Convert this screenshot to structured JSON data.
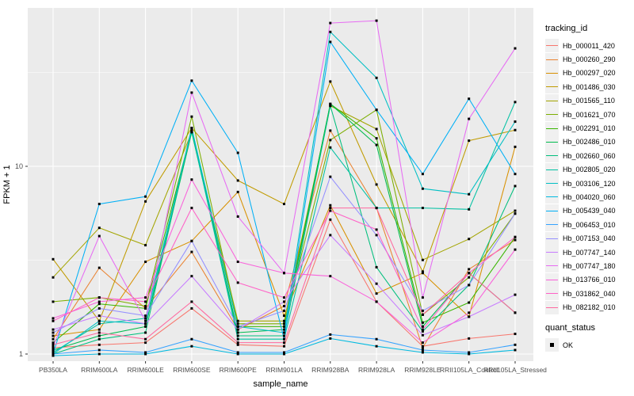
{
  "figure": {
    "background": "#FFFFFF",
    "panel_background": "#EBEBEB",
    "grid_color": "#FFFFFF",
    "axis_text_color": "#4D4D4D",
    "axis_title_color": "#000000",
    "tick_color": "#333333",
    "legend_key_background": "#F0F0F0",
    "point_color": "#000000"
  },
  "legend": {
    "tracking_title": "tracking_id",
    "quant_title": "quant_status",
    "quant_items": [
      "OK"
    ]
  },
  "chart_data": {
    "type": "line",
    "title": "",
    "xlabel": "sample_name",
    "ylabel": "FPKM + 1",
    "yscale": "log10",
    "ylim": [
      0.916,
      69.8
    ],
    "yticks": [
      1,
      10
    ],
    "ytick_labels": [
      "1",
      "10"
    ],
    "yminor": [
      3.162,
      31.623
    ],
    "grid": true,
    "legend_position": "right",
    "point_marker": {
      "shape": "square",
      "color": "#000000",
      "label": "OK"
    },
    "categories": [
      "PB350LA",
      "RRIM600LA",
      "RRIM600LE",
      "RRIM600SE",
      "RRIM600PE",
      "RRIM901LA",
      "RRIM928BA",
      "RRIM928LA",
      "RRIM928LE",
      "RRII105LA_Control",
      "RRII105LA_Stressed"
    ],
    "series": [
      {
        "name": "Hb_000011_420",
        "color": "#F8766D",
        "values": [
          1.08,
          1.12,
          1.15,
          1.75,
          1.12,
          1.1,
          5.2,
          1.9,
          1.1,
          1.21,
          1.28
        ]
      },
      {
        "name": "Hb_000260_290",
        "color": "#EA8331",
        "values": [
          1.2,
          2.88,
          1.75,
          3.5,
          1.35,
          1.8,
          15.5,
          6.0,
          1.08,
          2.83,
          4.05
        ]
      },
      {
        "name": "Hb_000297_020",
        "color": "#D89000",
        "values": [
          1.25,
          1.35,
          3.1,
          4.0,
          7.3,
          1.6,
          6.2,
          2.1,
          2.7,
          1.58,
          12.7
        ]
      },
      {
        "name": "Hb_001486_030",
        "color": "#C09B00",
        "values": [
          3.2,
          1.5,
          6.5,
          16.0,
          8.4,
          6.3,
          28.3,
          8.0,
          2.75,
          13.7,
          15.6
        ]
      },
      {
        "name": "Hb_001565_110",
        "color": "#A3A500",
        "values": [
          2.56,
          4.7,
          3.8,
          15.2,
          1.5,
          1.5,
          21.0,
          15.8,
          3.17,
          4.1,
          5.8
        ]
      },
      {
        "name": "Hb_001621_070",
        "color": "#7CAE00",
        "values": [
          1.9,
          2.0,
          1.8,
          18.4,
          1.45,
          1.45,
          13.8,
          20.0,
          1.62,
          2.56,
          5.6
        ]
      },
      {
        "name": "Hb_002291_010",
        "color": "#39B600",
        "values": [
          1.15,
          1.85,
          1.75,
          15.5,
          1.4,
          1.4,
          21.5,
          14.1,
          1.47,
          1.88,
          4.2
        ]
      },
      {
        "name": "Hb_002486_010",
        "color": "#00BB4E",
        "values": [
          1.05,
          1.25,
          1.4,
          15.2,
          1.3,
          1.35,
          21.5,
          13.0,
          1.4,
          2.7,
          1.66
        ]
      },
      {
        "name": "Hb_002660_060",
        "color": "#00BF7D",
        "values": [
          1.0,
          1.2,
          1.3,
          16.0,
          1.25,
          1.25,
          21.0,
          2.9,
          1.32,
          2.33,
          7.85
        ]
      },
      {
        "name": "Hb_002805_020",
        "color": "#00C1A3",
        "values": [
          1.02,
          1.45,
          1.55,
          15.5,
          1.2,
          1.2,
          12.6,
          6.0,
          6.0,
          5.9,
          22.0
        ]
      },
      {
        "name": "Hb_003106_120",
        "color": "#00BFC4",
        "values": [
          1.0,
          1.5,
          1.45,
          16.0,
          1.4,
          1.3,
          52.0,
          29.6,
          7.6,
          7.1,
          17.3
        ]
      },
      {
        "name": "Hb_004020_060",
        "color": "#00BAE0",
        "values": [
          0.98,
          1.0,
          1.0,
          1.1,
          1.0,
          1.0,
          1.21,
          1.1,
          1.02,
          1.0,
          1.05
        ]
      },
      {
        "name": "Hb_005439_040",
        "color": "#00B0F6",
        "values": [
          1.0,
          6.3,
          6.9,
          28.6,
          11.8,
          1.2,
          46.0,
          20.0,
          9.1,
          22.9,
          9.1
        ]
      },
      {
        "name": "Hb_006453_010",
        "color": "#35A2FF",
        "values": [
          1.0,
          1.05,
          1.02,
          1.2,
          1.02,
          1.02,
          1.27,
          1.2,
          1.05,
          1.02,
          1.12
        ]
      },
      {
        "name": "Hb_007153_040",
        "color": "#9590FF",
        "values": [
          1.3,
          1.75,
          1.6,
          4.0,
          1.4,
          1.7,
          8.8,
          4.3,
          1.7,
          2.33,
          5.6
        ]
      },
      {
        "name": "Hb_007747_140",
        "color": "#C77CFF",
        "values": [
          1.35,
          1.6,
          1.45,
          2.6,
          1.35,
          1.9,
          4.3,
          2.37,
          1.26,
          1.58,
          2.07
        ]
      },
      {
        "name": "Hb_007747_180",
        "color": "#E76BF3",
        "values": [
          1.1,
          4.25,
          1.5,
          24.7,
          5.4,
          2.7,
          58.0,
          59.7,
          2.0,
          17.9,
          42.5
        ]
      },
      {
        "name": "Hb_013766_010",
        "color": "#FA62DB",
        "values": [
          1.55,
          1.9,
          2.0,
          8.5,
          3.1,
          2.7,
          2.6,
          1.9,
          1.15,
          1.66,
          3.6
        ]
      },
      {
        "name": "Hb_031862_040",
        "color": "#FF61C7",
        "values": [
          1.5,
          2.0,
          1.9,
          6.0,
          2.4,
          2.0,
          5.8,
          4.6,
          1.35,
          2.7,
          4.2
        ]
      },
      {
        "name": "Hb_082182_010",
        "color": "#FF689F",
        "values": [
          1.12,
          1.3,
          1.2,
          1.9,
          1.15,
          1.15,
          6.0,
          6.0,
          1.62,
          2.7,
          1.66
        ]
      }
    ]
  }
}
